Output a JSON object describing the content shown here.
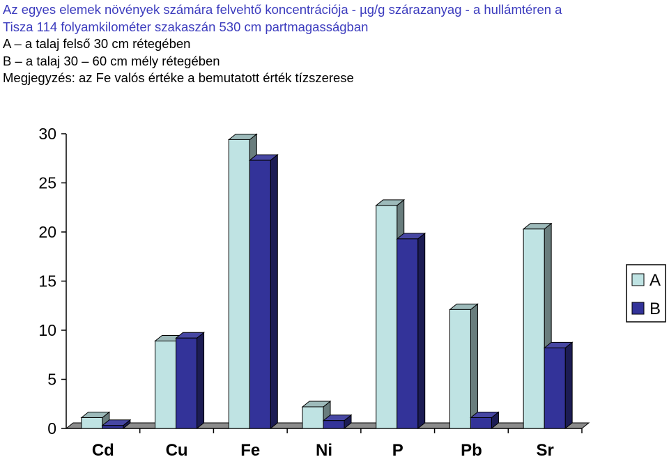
{
  "header": {
    "lines": [
      {
        "text": "Az egyes elemek növények számára felvehtő koncentrációja  - µg/g szárazanyag -  a hullámtéren a",
        "color": "#3c3cbe"
      },
      {
        "text": "Tisza 114 folyamkilométer szakaszán 530 cm partmagasságban",
        "color": "#3c3cbe"
      },
      {
        "text": "A – a talaj felső 30 cm rétegében",
        "color": "#000000"
      },
      {
        "text": "B – a talaj 30 – 60 cm mély rétegében",
        "color": "#000000"
      },
      {
        "text": "Megjegyzés: az Fe valós értéke a bemutatott érték tízszerese",
        "color": "#000000"
      }
    ]
  },
  "chart_data": {
    "type": "bar",
    "categories": [
      "Cd",
      "Cu",
      "Fe",
      "Ni",
      "P",
      "Pb",
      "Sr"
    ],
    "series": [
      {
        "name": "A",
        "values": [
          1.1,
          8.9,
          29.4,
          2.2,
          22.7,
          12.1,
          20.3
        ],
        "color": "#bfe3e3"
      },
      {
        "name": "B",
        "values": [
          0.3,
          9.2,
          27.3,
          0.8,
          19.3,
          1.1,
          8.2
        ],
        "color": "#333399"
      }
    ],
    "ylim": [
      0,
      30
    ],
    "yticks": [
      "0",
      "5",
      "10",
      "15",
      "20",
      "25",
      "30"
    ],
    "legend_position": "right",
    "grid": false
  }
}
